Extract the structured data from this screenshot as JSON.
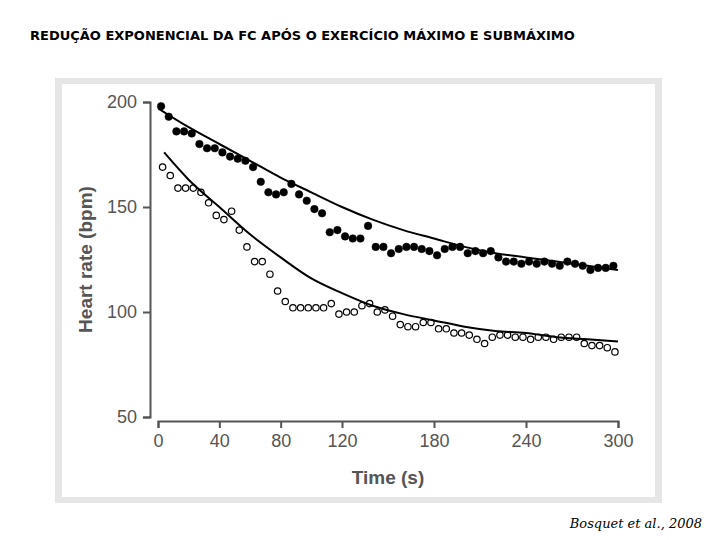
{
  "chart_data": {
    "type": "scatter",
    "title": "REDUÇÃO EXPONENCIAL DA FC APÓS O EXERCÍCIO MÁXIMO E SUBMÁXIMO",
    "source": "Bosquet et al., 2008",
    "x_label": "Time (s)",
    "y_label": "Heart rate (bpm)",
    "xlim": [
      0,
      300
    ],
    "xticks": [
      0,
      40,
      80,
      120,
      180,
      240,
      300
    ],
    "ylim": [
      50,
      200
    ],
    "yticks": [
      50,
      100,
      150,
      200
    ],
    "grid": false,
    "series": [
      {
        "type": "scatter",
        "marker": "filled",
        "color": "#000000",
        "x": [
          2,
          7,
          12,
          17,
          22,
          27,
          32,
          37,
          42,
          47,
          52,
          57,
          62,
          67,
          72,
          77,
          82,
          87,
          92,
          97,
          102,
          107,
          112,
          117,
          122,
          127,
          132,
          137,
          142,
          147,
          152,
          157,
          162,
          167,
          172,
          177,
          182,
          187,
          192,
          197,
          202,
          207,
          212,
          217,
          222,
          227,
          232,
          237,
          242,
          247,
          252,
          257,
          262,
          267,
          272,
          277,
          282,
          287,
          292,
          297
        ],
        "values": [
          198,
          193,
          186,
          186,
          185,
          180,
          178,
          178,
          176,
          174,
          173,
          172,
          169,
          162,
          157,
          156,
          157,
          161,
          156,
          153,
          149,
          147,
          138,
          139,
          136,
          135,
          135,
          141,
          131,
          131,
          128,
          130,
          131,
          131,
          130,
          129,
          127,
          130,
          131,
          131,
          128,
          129,
          128,
          129,
          126,
          124,
          124,
          123,
          124,
          123,
          124,
          123,
          122,
          124,
          123,
          122,
          120,
          121,
          121,
          122
        ]
      },
      {
        "type": "scatter",
        "marker": "open",
        "color": "#000000",
        "x": [
          3,
          8,
          13,
          18,
          23,
          28,
          33,
          38,
          43,
          48,
          53,
          58,
          63,
          68,
          73,
          78,
          83,
          88,
          93,
          98,
          103,
          108,
          113,
          118,
          123,
          128,
          133,
          138,
          143,
          148,
          153,
          158,
          163,
          168,
          173,
          178,
          183,
          188,
          193,
          198,
          203,
          208,
          213,
          218,
          223,
          228,
          233,
          238,
          243,
          248,
          253,
          258,
          263,
          268,
          273,
          278,
          283,
          288,
          293,
          298
        ],
        "values": [
          169,
          165,
          159,
          159,
          159,
          157,
          152,
          146,
          144,
          148,
          139,
          131,
          124,
          124,
          118,
          110,
          105,
          102,
          102,
          102,
          102,
          102,
          104,
          99,
          100,
          100,
          103,
          104,
          100,
          101,
          98,
          94,
          93,
          93,
          95,
          95,
          92,
          92,
          90,
          90,
          89,
          87,
          85,
          88,
          89,
          89,
          88,
          88,
          87,
          88,
          88,
          87,
          88,
          88,
          88,
          85,
          84,
          84,
          83,
          81
        ]
      },
      {
        "type": "line",
        "line_style": "solid",
        "color": "#000000",
        "x": [
          0,
          20,
          40,
          60,
          80,
          100,
          120,
          140,
          160,
          180,
          200,
          220,
          240,
          260,
          280,
          300
        ],
        "values": [
          197,
          188,
          180,
          172,
          164,
          157,
          150,
          144,
          139,
          135,
          131,
          128,
          126,
          124,
          122,
          120
        ]
      },
      {
        "type": "line",
        "line_style": "solid",
        "color": "#000000",
        "x": [
          4,
          20,
          40,
          60,
          80,
          100,
          120,
          140,
          160,
          180,
          200,
          220,
          240,
          260,
          280,
          300
        ],
        "values": [
          176,
          163,
          150,
          137,
          126,
          116,
          109,
          103,
          99,
          96,
          93,
          91,
          90,
          88,
          87,
          86
        ]
      }
    ]
  }
}
